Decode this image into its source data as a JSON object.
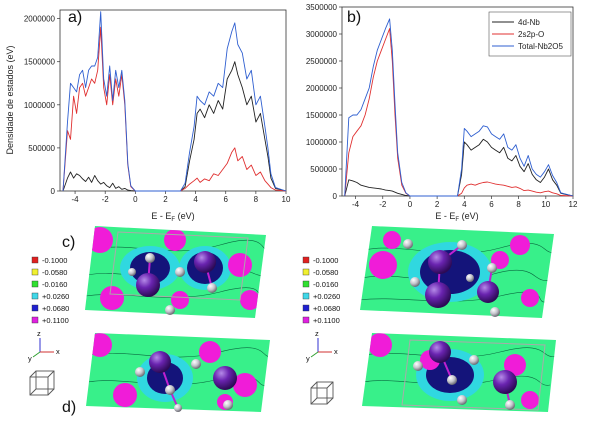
{
  "panel_labels": {
    "a": "a)",
    "b": "b)",
    "c": "c)",
    "d": "d)"
  },
  "chart_data": [
    {
      "type": "line",
      "panel": "a)",
      "ylabel": "Densidade de estados (eV)",
      "xlabel_main": "E - E",
      "xlabel_sub": "F",
      "xlabel_tail": " (eV)",
      "xlim": [
        -5,
        10
      ],
      "ylim": [
        0,
        2100000
      ],
      "xticks": [
        -4,
        -2,
        0,
        2,
        4,
        6,
        8,
        10
      ],
      "yticks": [
        0,
        500000,
        1000000,
        1500000,
        2000000
      ],
      "ytick_labels": [
        "0",
        "500000",
        "1000000",
        "1500000",
        "2000000"
      ],
      "series": [
        {
          "color": "#222222",
          "x": [
            -4.8,
            -4.5,
            -4.3,
            -4.1,
            -3.9,
            -3.7,
            -3.5,
            -3.3,
            -3.1,
            -2.9,
            -2.7,
            -2.5,
            -2.3,
            -2.1,
            -1.9,
            -1.7,
            -1.5,
            -1.3,
            -1.1,
            -0.9,
            -0.7,
            -0.5,
            -0.3,
            0,
            3,
            3.3,
            3.6,
            3.9,
            4.1,
            4.3,
            4.6,
            4.9,
            5.2,
            5.5,
            5.8,
            6.1,
            6.4,
            6.6,
            6.8,
            7.1,
            7.4,
            7.7,
            8.0,
            8.3,
            8.6,
            8.8,
            9.0,
            9.3,
            10
          ],
          "y": [
            0,
            150000,
            220000,
            150000,
            200000,
            180000,
            140000,
            110000,
            160000,
            100000,
            180000,
            120000,
            80000,
            100000,
            60000,
            40000,
            90000,
            30000,
            50000,
            20000,
            30000,
            10000,
            5000,
            0,
            0,
            50000,
            350000,
            600000,
            900000,
            950000,
            850000,
            1000000,
            900000,
            1050000,
            950000,
            1300000,
            1400000,
            1500000,
            1350000,
            1200000,
            1000000,
            1100000,
            800000,
            900000,
            600000,
            400000,
            150000,
            30000,
            0
          ]
        },
        {
          "color": "#e03030",
          "x": [
            -4.8,
            -4.5,
            -4.3,
            -4.1,
            -3.9,
            -3.7,
            -3.5,
            -3.3,
            -3.1,
            -2.9,
            -2.7,
            -2.5,
            -2.3,
            -2.1,
            -1.9,
            -1.7,
            -1.5,
            -1.3,
            -1.1,
            -0.9,
            -0.7,
            -0.5,
            -0.3,
            0,
            3,
            3.3,
            3.6,
            3.9,
            4.1,
            4.3,
            4.6,
            4.9,
            5.2,
            5.5,
            5.8,
            6.1,
            6.4,
            6.6,
            6.8,
            7.1,
            7.4,
            7.7,
            8.0,
            8.3,
            8.6,
            8.8,
            9.0,
            9.3,
            10
          ],
          "y": [
            0,
            700000,
            600000,
            1100000,
            900000,
            1200000,
            1250000,
            1100000,
            1200000,
            1300000,
            1250000,
            1400000,
            1900000,
            1200000,
            1000000,
            1350000,
            1000000,
            1300000,
            1100000,
            1350000,
            1000000,
            300000,
            50000,
            0,
            0,
            30000,
            80000,
            120000,
            150000,
            100000,
            140000,
            120000,
            200000,
            180000,
            250000,
            320000,
            450000,
            500000,
            350000,
            400000,
            250000,
            300000,
            180000,
            220000,
            120000,
            80000,
            40000,
            10000,
            0
          ]
        },
        {
          "color": "#2f5fd0",
          "x": [
            -4.8,
            -4.5,
            -4.3,
            -4.1,
            -3.9,
            -3.7,
            -3.5,
            -3.3,
            -3.1,
            -2.9,
            -2.7,
            -2.5,
            -2.3,
            -2.1,
            -1.9,
            -1.7,
            -1.5,
            -1.3,
            -1.1,
            -0.9,
            -0.7,
            -0.5,
            -0.3,
            0,
            3,
            3.3,
            3.6,
            3.9,
            4.1,
            4.3,
            4.6,
            4.9,
            5.2,
            5.5,
            5.8,
            6.1,
            6.4,
            6.6,
            6.8,
            7.1,
            7.4,
            7.7,
            8.0,
            8.3,
            8.6,
            8.8,
            9.0,
            9.3,
            10
          ],
          "y": [
            0,
            800000,
            1250000,
            1200000,
            1150000,
            1350000,
            1400000,
            1200000,
            1400000,
            1450000,
            1450000,
            1550000,
            2080000,
            1300000,
            1100000,
            1450000,
            1050000,
            1400000,
            1200000,
            1400000,
            1050000,
            320000,
            60000,
            0,
            0,
            90000,
            450000,
            750000,
            1100000,
            1050000,
            1000000,
            1150000,
            1100000,
            1250000,
            1200000,
            1650000,
            1850000,
            1950000,
            1700000,
            1600000,
            1300000,
            1400000,
            1000000,
            1100000,
            750000,
            500000,
            200000,
            40000,
            0
          ]
        }
      ]
    },
    {
      "type": "line",
      "panel": "b)",
      "xlabel_main": "E - E",
      "xlabel_sub": "F",
      "xlabel_tail": " (eV)",
      "xlim": [
        -5,
        12
      ],
      "ylim": [
        0,
        3500000
      ],
      "xticks": [
        -4,
        -2,
        0,
        2,
        4,
        6,
        8,
        10,
        12
      ],
      "yticks": [
        0,
        500000,
        1000000,
        1500000,
        2000000,
        2500000,
        3000000,
        3500000
      ],
      "ytick_labels": [
        "0",
        "500000",
        "1000000",
        "1500000",
        "2000000",
        "2500000",
        "3000000",
        "3500000"
      ],
      "legend_position": "top-right",
      "series": [
        {
          "name": "4d-Nb",
          "color": "#222222",
          "x": [
            -4.8,
            -4.5,
            -4.2,
            -3.9,
            -3.6,
            -3.3,
            -3.0,
            -2.7,
            -2.4,
            -2.1,
            -1.8,
            -1.5,
            -1.3,
            -1.1,
            -0.9,
            -0.6,
            -0.3,
            0,
            3.5,
            3.8,
            4.0,
            4.2,
            4.5,
            4.8,
            5.1,
            5.4,
            5.7,
            6.0,
            6.3,
            6.6,
            6.9,
            7.2,
            7.5,
            7.8,
            8.1,
            8.4,
            8.7,
            9.0,
            9.3,
            9.6,
            9.9,
            10.2,
            10.5,
            10.8,
            11.1,
            12
          ],
          "y": [
            0,
            300000,
            280000,
            250000,
            200000,
            180000,
            160000,
            150000,
            140000,
            130000,
            110000,
            100000,
            90000,
            70000,
            50000,
            30000,
            10000,
            0,
            0,
            400000,
            1000000,
            950000,
            850000,
            900000,
            950000,
            1050000,
            1000000,
            900000,
            850000,
            800000,
            900000,
            700000,
            650000,
            750000,
            550000,
            450000,
            600000,
            400000,
            300000,
            250000,
            350000,
            500000,
            300000,
            200000,
            50000,
            0
          ]
        },
        {
          "name": "2s2p-O",
          "color": "#e03030",
          "x": [
            -4.8,
            -4.5,
            -4.2,
            -3.9,
            -3.6,
            -3.3,
            -3.0,
            -2.7,
            -2.4,
            -2.1,
            -1.8,
            -1.5,
            -1.3,
            -1.1,
            -0.9,
            -0.6,
            -0.3,
            0,
            3.5,
            3.8,
            4.0,
            4.2,
            4.5,
            4.8,
            5.1,
            5.4,
            5.7,
            6.0,
            6.3,
            6.6,
            6.9,
            7.2,
            7.5,
            7.8,
            8.1,
            8.4,
            8.7,
            9.0,
            9.3,
            9.6,
            9.9,
            10.2,
            10.5,
            10.8,
            11.1,
            12
          ],
          "y": [
            0,
            800000,
            1100000,
            1200000,
            1300000,
            1500000,
            1800000,
            2200000,
            2500000,
            2700000,
            2900000,
            3100000,
            2500000,
            1500000,
            700000,
            200000,
            50000,
            0,
            0,
            50000,
            150000,
            200000,
            220000,
            200000,
            230000,
            250000,
            260000,
            240000,
            220000,
            210000,
            200000,
            180000,
            160000,
            170000,
            140000,
            100000,
            110000,
            90000,
            70000,
            60000,
            80000,
            90000,
            60000,
            40000,
            10000,
            0
          ]
        },
        {
          "name": "Total-Nb2O5",
          "color": "#2f5fd0",
          "x": [
            -4.8,
            -4.5,
            -4.2,
            -3.9,
            -3.6,
            -3.3,
            -3.0,
            -2.7,
            -2.4,
            -2.1,
            -1.8,
            -1.5,
            -1.3,
            -1.1,
            -0.9,
            -0.6,
            -0.3,
            0,
            3.5,
            3.8,
            4.0,
            4.2,
            4.5,
            4.8,
            5.1,
            5.4,
            5.7,
            6.0,
            6.3,
            6.6,
            6.9,
            7.2,
            7.5,
            7.8,
            8.1,
            8.4,
            8.7,
            9.0,
            9.3,
            9.6,
            9.9,
            10.2,
            10.5,
            10.8,
            11.1,
            12
          ],
          "y": [
            0,
            1450000,
            1500000,
            1500000,
            1600000,
            1800000,
            2000000,
            2400000,
            2700000,
            2900000,
            3100000,
            3280000,
            2700000,
            1700000,
            800000,
            250000,
            60000,
            0,
            0,
            500000,
            1250000,
            1200000,
            1100000,
            1150000,
            1200000,
            1300000,
            1280000,
            1150000,
            1100000,
            1050000,
            1150000,
            900000,
            850000,
            950000,
            700000,
            550000,
            750000,
            500000,
            400000,
            350000,
            450000,
            580000,
            380000,
            250000,
            60000,
            0
          ]
        }
      ]
    }
  ],
  "colorbar": {
    "entries": [
      {
        "label": "-0.1000",
        "color": "#e02020"
      },
      {
        "label": "-0.0580",
        "color": "#f0f030"
      },
      {
        "label": "-0.0160",
        "color": "#30e030"
      },
      {
        "label": "+0.0260",
        "color": "#40d8e8"
      },
      {
        "label": "+0.0680",
        "color": "#2020d0"
      },
      {
        "label": "+0.1100",
        "color": "#e020e0"
      }
    ]
  },
  "axis_triad": {
    "z": "z",
    "y": "y",
    "x": "x"
  },
  "map_colors": {
    "background": "#38f08a",
    "cyan": "#30d8e0",
    "navy": "#14147a",
    "magenta": "#f01cd8",
    "atom_nb": "#5a1a9a",
    "atom_o": "#c0c0c8"
  }
}
